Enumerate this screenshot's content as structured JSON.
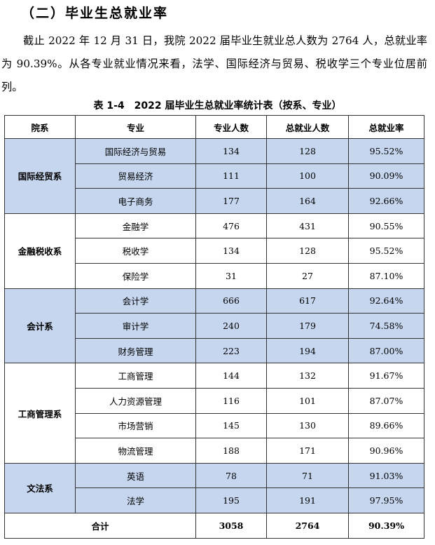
{
  "heading": "（二）毕业生总就业率",
  "paragraph": "截止 2022 年 12 月 31 日，我院 2022 届毕业生就业总人数为 2764 人，总就业率为 90.39%。从各专业就业情况来看，法学、国际经济与贸易、税收学三个专业位居前列。",
  "table": {
    "caption": "表 1-4　2022 届毕业生总就业率统计表（按系、专业）",
    "headers": [
      "院系",
      "专业",
      "专业人数",
      "总就业人数",
      "总就业率"
    ],
    "departments": [
      {
        "name": "国际经贸系",
        "highlight": true,
        "rows": [
          {
            "major": "国际经济与贸易",
            "count": "134",
            "employed": "128",
            "rate": "95.52%"
          },
          {
            "major": "贸易经济",
            "count": "111",
            "employed": "100",
            "rate": "90.09%"
          },
          {
            "major": "电子商务",
            "count": "177",
            "employed": "164",
            "rate": "92.66%"
          }
        ]
      },
      {
        "name": "金融税收系",
        "highlight": false,
        "rows": [
          {
            "major": "金融学",
            "count": "476",
            "employed": "431",
            "rate": "90.55%"
          },
          {
            "major": "税收学",
            "count": "134",
            "employed": "128",
            "rate": "95.52%"
          },
          {
            "major": "保险学",
            "count": "31",
            "employed": "27",
            "rate": "87.10%"
          }
        ]
      },
      {
        "name": "会计系",
        "highlight": true,
        "rows": [
          {
            "major": "会计学",
            "count": "666",
            "employed": "617",
            "rate": "92.64%"
          },
          {
            "major": "审计学",
            "count": "240",
            "employed": "179",
            "rate": "74.58%"
          },
          {
            "major": "财务管理",
            "count": "223",
            "employed": "194",
            "rate": "87.00%"
          }
        ]
      },
      {
        "name": "工商管理系",
        "highlight": false,
        "rows": [
          {
            "major": "工商管理",
            "count": "144",
            "employed": "132",
            "rate": "91.67%"
          },
          {
            "major": "人力资源管理",
            "count": "116",
            "employed": "101",
            "rate": "87.07%"
          },
          {
            "major": "市场营销",
            "count": "145",
            "employed": "130",
            "rate": "89.66%"
          },
          {
            "major": "物流管理",
            "count": "188",
            "employed": "171",
            "rate": "90.96%"
          }
        ]
      },
      {
        "name": "文法系",
        "highlight": true,
        "rows": [
          {
            "major": "英语",
            "count": "78",
            "employed": "71",
            "rate": "91.03%"
          },
          {
            "major": "法学",
            "count": "195",
            "employed": "191",
            "rate": "97.95%"
          }
        ]
      }
    ],
    "total": {
      "label": "合计",
      "count": "3058",
      "employed": "2764",
      "rate": "90.39%"
    }
  }
}
